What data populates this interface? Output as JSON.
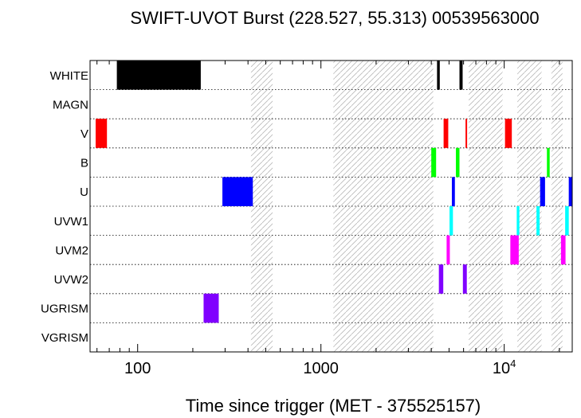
{
  "chart_data": {
    "type": "timeline",
    "title": "SWIFT-UVOT Burst (228.527, 55.313) 00539563000",
    "xlabel": "Time since trigger (MET - 375525157)",
    "xscale": "log",
    "xlim": [
      55,
      23500
    ],
    "xticks": [
      {
        "value": 100,
        "label": "100"
      },
      {
        "value": 1000,
        "label": "1000"
      },
      {
        "value": 10000,
        "label": "10",
        "sup": "4"
      }
    ],
    "rows": [
      "WHITE",
      "MAGN",
      "V",
      "B",
      "U",
      "UVW1",
      "UVM2",
      "UVW2",
      "UGRISM",
      "VGRISM"
    ],
    "hatched_intervals": [
      [
        415,
        545
      ],
      [
        1170,
        4100
      ],
      [
        6400,
        9800
      ],
      [
        11800,
        16000
      ],
      [
        18100,
        20800
      ]
    ],
    "exposures": [
      {
        "row": "WHITE",
        "start": 77,
        "end": 221,
        "color": "#000000"
      },
      {
        "row": "WHITE",
        "start": 4300,
        "end": 4450,
        "color": "#000000"
      },
      {
        "row": "WHITE",
        "start": 5700,
        "end": 5930,
        "color": "#000000"
      },
      {
        "row": "V",
        "start": 59,
        "end": 68,
        "color": "#ff0000"
      },
      {
        "row": "V",
        "start": 4670,
        "end": 4950,
        "color": "#ff0000"
      },
      {
        "row": "V",
        "start": 6150,
        "end": 6250,
        "color": "#ff0000"
      },
      {
        "row": "V",
        "start": 10100,
        "end": 11000,
        "color": "#ff0000"
      },
      {
        "row": "B",
        "start": 4000,
        "end": 4250,
        "color": "#00ff00"
      },
      {
        "row": "B",
        "start": 5450,
        "end": 5700,
        "color": "#00ff00"
      },
      {
        "row": "B",
        "start": 17100,
        "end": 17700,
        "color": "#00ff00"
      },
      {
        "row": "U",
        "start": 290,
        "end": 425,
        "color": "#0000ff"
      },
      {
        "row": "U",
        "start": 5180,
        "end": 5380,
        "color": "#0000ff"
      },
      {
        "row": "U",
        "start": 15700,
        "end": 16700,
        "color": "#0000ff"
      },
      {
        "row": "U",
        "start": 22500,
        "end": 23500,
        "color": "#0000ff"
      },
      {
        "row": "UVW1",
        "start": 5030,
        "end": 5250,
        "color": "#00ffff"
      },
      {
        "row": "UVW1",
        "start": 11700,
        "end": 12100,
        "color": "#00ffff"
      },
      {
        "row": "UVW1",
        "start": 15000,
        "end": 15600,
        "color": "#00ffff"
      },
      {
        "row": "UVW1",
        "start": 21500,
        "end": 22500,
        "color": "#00ffff"
      },
      {
        "row": "UVM2",
        "start": 4850,
        "end": 5050,
        "color": "#ff00ff"
      },
      {
        "row": "UVM2",
        "start": 10800,
        "end": 12000,
        "color": "#ff00ff"
      },
      {
        "row": "UVM2",
        "start": 20400,
        "end": 21600,
        "color": "#ff00ff"
      },
      {
        "row": "UVW2",
        "start": 4400,
        "end": 4650,
        "color": "#8000ff"
      },
      {
        "row": "UVW2",
        "start": 5950,
        "end": 6250,
        "color": "#8000ff"
      },
      {
        "row": "UGRISM",
        "start": 229,
        "end": 277,
        "color": "#8000ff"
      }
    ],
    "grid": "dotted row separators"
  }
}
